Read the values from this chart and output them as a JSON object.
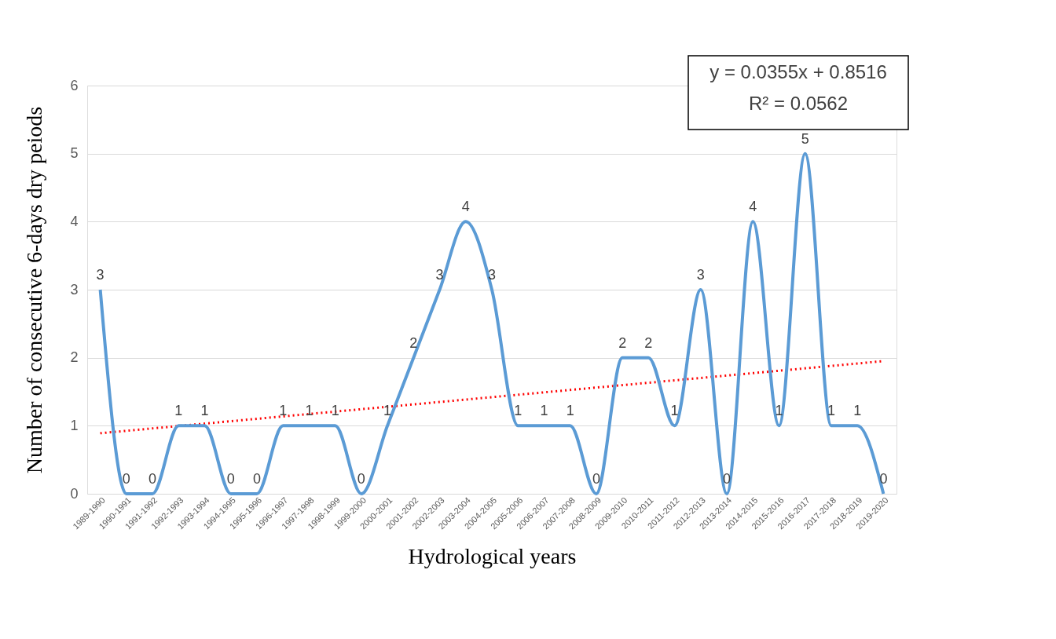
{
  "chart_data": {
    "type": "line",
    "xlabel": "Hydrological years",
    "ylabel": "Number of consecutive 6-days dry peiods",
    "categories": [
      "1989-1990",
      "1990-1991",
      "1991-1992",
      "1992-1993",
      "1993-1994",
      "1994-1995",
      "1995-1996",
      "1996-1997",
      "1997-1998",
      "1998-1999",
      "1999-2000",
      "2000-2001",
      "2001-2002",
      "2002-2003",
      "2003-2004",
      "2004-2005",
      "2005-2006",
      "2006-2007",
      "2007-2008",
      "2008-2009",
      "2009-2010",
      "2010-2011",
      "2011-2012",
      "2012-2013",
      "2013-2014",
      "2014-2015",
      "2015-2016",
      "2016-2017",
      "2017-2018",
      "2018-2019",
      "2019-2020"
    ],
    "series": [
      {
        "color": "#5b9bd5",
        "line_style": "solid",
        "data_labels": true,
        "values": [
          3,
          0,
          0,
          1,
          1,
          0,
          0,
          1,
          1,
          1,
          0,
          1,
          2,
          3,
          4,
          3,
          1,
          1,
          1,
          0,
          2,
          2,
          1,
          3,
          0,
          4,
          1,
          5,
          1,
          1,
          0
        ]
      },
      {
        "type": "line",
        "color": "#ff0000",
        "line_style": "dotted",
        "x": [
          "1989-1990",
          "2019-2020"
        ],
        "values": [
          0.89,
          1.95
        ]
      }
    ],
    "annotations": [
      "y = 0.0355x + 0.8516",
      "R² = 0.0562"
    ],
    "ylim": [
      0,
      6
    ],
    "yticks": [
      0,
      1,
      2,
      3,
      4,
      5,
      6
    ],
    "grid": "y",
    "marker": "none"
  }
}
